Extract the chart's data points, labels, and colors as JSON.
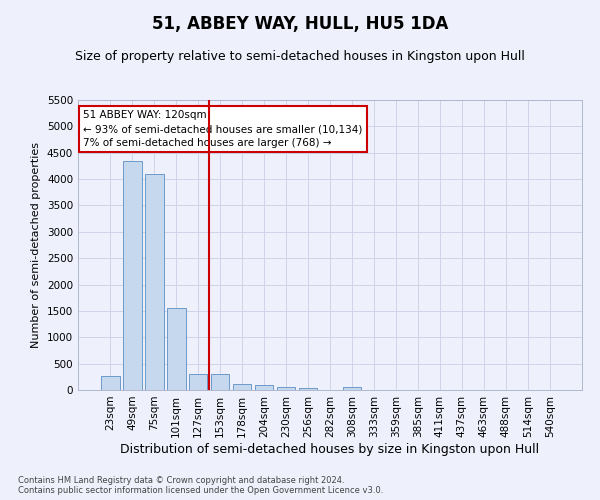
{
  "title": "51, ABBEY WAY, HULL, HU5 1DA",
  "subtitle": "Size of property relative to semi-detached houses in Kingston upon Hull",
  "xlabel": "Distribution of semi-detached houses by size in Kingston upon Hull",
  "ylabel": "Number of semi-detached properties",
  "categories": [
    "23sqm",
    "49sqm",
    "75sqm",
    "101sqm",
    "127sqm",
    "153sqm",
    "178sqm",
    "204sqm",
    "230sqm",
    "256sqm",
    "282sqm",
    "308sqm",
    "333sqm",
    "359sqm",
    "385sqm",
    "411sqm",
    "437sqm",
    "463sqm",
    "488sqm",
    "514sqm",
    "540sqm"
  ],
  "values": [
    270,
    4350,
    4100,
    1550,
    310,
    310,
    120,
    90,
    60,
    40,
    0,
    60,
    0,
    0,
    0,
    0,
    0,
    0,
    0,
    0,
    0
  ],
  "bar_color": "#c5d8ee",
  "bar_edge_color": "#5b8ec4",
  "annotation_title": "51 ABBEY WAY: 120sqm",
  "annotation_line1": "← 93% of semi-detached houses are smaller (10,134)",
  "annotation_line2": "7% of semi-detached houses are larger (768) →",
  "annotation_box_color": "#ffffff",
  "annotation_box_edge": "#cc0000",
  "vline_color": "#cc0000",
  "vline_x": 4.5,
  "ylim": [
    0,
    5500
  ],
  "yticks": [
    0,
    500,
    1000,
    1500,
    2000,
    2500,
    3000,
    3500,
    4000,
    4500,
    5000,
    5500
  ],
  "footer1": "Contains HM Land Registry data © Crown copyright and database right 2024.",
  "footer2": "Contains public sector information licensed under the Open Government Licence v3.0.",
  "background_color": "#eef1fb",
  "grid_color": "#d0d4e8",
  "title_fontsize": 12,
  "subtitle_fontsize": 9,
  "tick_fontsize": 7.5,
  "ylabel_fontsize": 8,
  "xlabel_fontsize": 9,
  "footer_fontsize": 6,
  "annotation_fontsize": 7.5
}
